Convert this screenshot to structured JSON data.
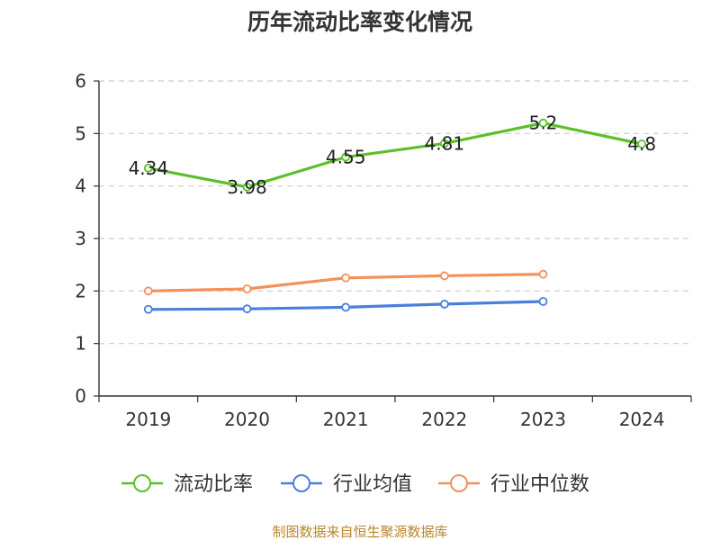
{
  "chart_data": {
    "type": "line",
    "title": "历年流动比率变化情况",
    "categories": [
      "2019",
      "2020",
      "2021",
      "2022",
      "2023",
      "2024"
    ],
    "ylim": [
      0,
      6
    ],
    "yticks": [
      0,
      1,
      2,
      3,
      4,
      5,
      6
    ],
    "grid": true,
    "legend_position": "bottom",
    "series": [
      {
        "name": "流动比率",
        "color": "#5cbf2a",
        "values": [
          4.34,
          3.98,
          4.55,
          4.81,
          5.2,
          4.8
        ],
        "labels": [
          "4.34",
          "3.98",
          "4.55",
          "4.81",
          "5.2",
          "4.8"
        ]
      },
      {
        "name": "行业均值",
        "color": "#4a7fdc",
        "values": [
          1.65,
          1.66,
          1.69,
          1.75,
          1.8,
          null
        ]
      },
      {
        "name": "行业中位数",
        "color": "#f5905a",
        "values": [
          2.0,
          2.04,
          2.25,
          2.29,
          2.32,
          null
        ]
      }
    ]
  },
  "footer": {
    "source": "制图数据来自恒生聚源数据库"
  },
  "colors": {
    "source_text": "#b8862c",
    "axis": "#333333",
    "grid": "#cccccc"
  }
}
